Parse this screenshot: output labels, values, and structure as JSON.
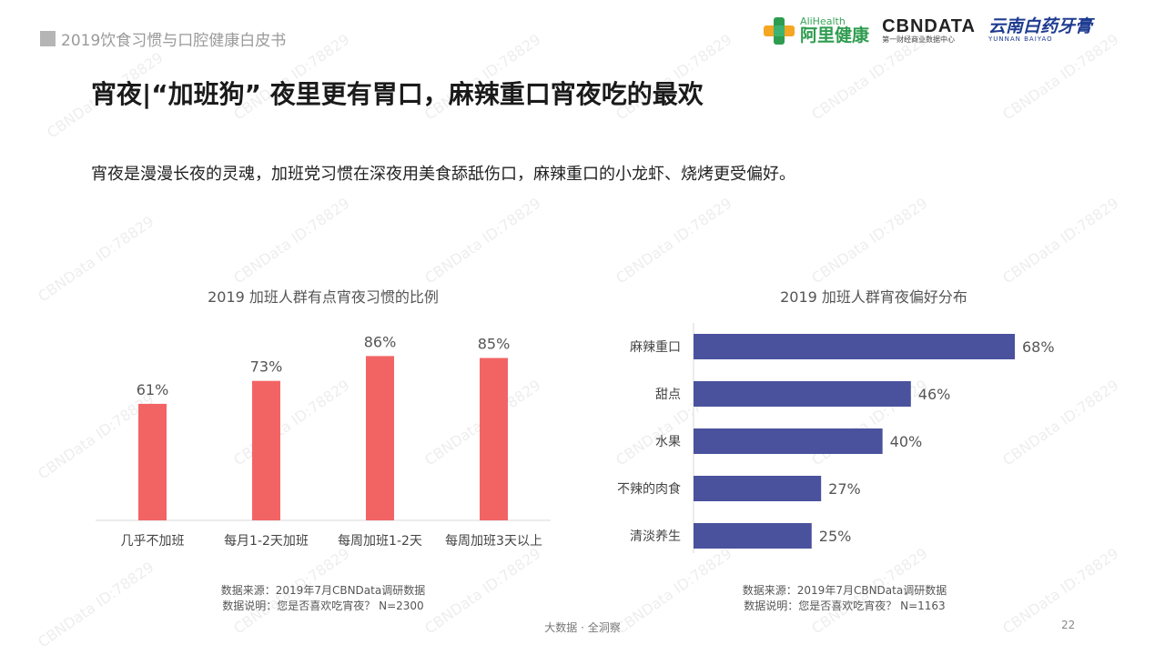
{
  "header": {
    "report_title": "2019饮食习惯与口腔健康白皮书"
  },
  "logos": {
    "alihealth_en": "AliHealth",
    "alihealth_cn": "阿里健康",
    "cbndata": "CBNDATA",
    "cbndata_sub": "第一财经商业数据中心",
    "yunnan_cn": "云南白药牙膏",
    "yunnan_en": "YUNNAN BAIYAO"
  },
  "title": "宵夜|“加班狗” 夜里更有胃口，麻辣重口宵夜吃的最欢",
  "lead": "宵夜是漫漫长夜的灵魂，加班党习惯在深夜用美食舔舐伤口，麻辣重口的小龙虾、烧烤更受偏好。",
  "chart_data": [
    {
      "type": "bar",
      "title": "2019 加班人群有点宵夜习惯的比例",
      "categories": [
        "几乎不加班",
        "每月1-2天加班",
        "每周加班1-2天",
        "每周加班3天以上"
      ],
      "values": [
        61,
        73,
        86,
        85
      ],
      "value_labels": [
        "61%",
        "73%",
        "86%",
        "85%"
      ],
      "unit": "%",
      "ylim": [
        0,
        100
      ],
      "color": "#f26464",
      "grid": false,
      "legend": "none"
    },
    {
      "type": "bar",
      "orientation": "horizontal",
      "title": "2019 加班人群宵夜偏好分布",
      "categories": [
        "麻辣重口",
        "甜点",
        "水果",
        "不辣的肉食",
        "清淡养生"
      ],
      "values": [
        68,
        46,
        40,
        27,
        25
      ],
      "value_labels": [
        "68%",
        "46%",
        "40%",
        "27%",
        "25%"
      ],
      "unit": "%",
      "xlim": [
        0,
        68
      ],
      "color": "#4a529e",
      "grid": false,
      "legend": "none"
    }
  ],
  "notes": {
    "left_source": "数据来源：2019年7月CBNData调研数据",
    "left_desc": "数据说明：您是否喜欢吃宵夜？ N=2300",
    "right_source": "数据来源：2019年7月CBNData调研数据",
    "right_desc": "数据说明：您是否喜欢吃宵夜？ N=1163"
  },
  "footer": {
    "tagline": "大数据 · 全洞察",
    "page_number": "22"
  },
  "watermark": "CBNData ID:78829",
  "colors": {
    "bar_red": "#f26464",
    "bar_blue": "#4a529e",
    "title": "#1a1a1a",
    "ali_green": "#2e9c4f",
    "yunnan_blue": "#1f3c91"
  }
}
